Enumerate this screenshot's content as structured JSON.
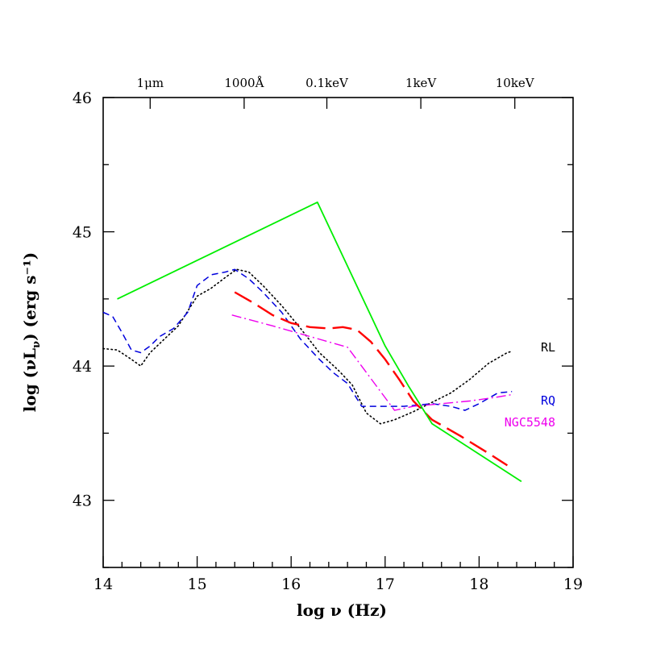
{
  "chart_data": {
    "type": "line",
    "xlabel": "log ν (Hz)",
    "ylabel": "log (νL",
    "ylabel_sub": "ν",
    "ylabel_tail": ") (erg s⁻¹)",
    "xlim": [
      14,
      19
    ],
    "ylim": [
      42.5,
      46
    ],
    "x_ticks": [
      14,
      15,
      16,
      17,
      18,
      19
    ],
    "x_tick_labels": [
      "14",
      "15",
      "16",
      "17",
      "18",
      "19"
    ],
    "y_ticks": [
      43,
      44,
      45,
      46
    ],
    "y_tick_labels": [
      "43",
      "44",
      "45",
      "46"
    ],
    "top_axis": [
      {
        "x": 14.5,
        "label": "1μm"
      },
      {
        "x": 15.5,
        "label": "1000Å"
      },
      {
        "x": 16.38,
        "label": "0.1keV"
      },
      {
        "x": 17.38,
        "label": "1keV"
      },
      {
        "x": 18.38,
        "label": "10keV"
      }
    ],
    "series": [
      {
        "name": "RL",
        "color": "#000000",
        "style": "dotted",
        "x": [
          14.0,
          14.15,
          14.3,
          14.4,
          14.5,
          14.65,
          14.8,
          15.0,
          15.15,
          15.3,
          15.42,
          15.55,
          15.7,
          15.9,
          16.1,
          16.3,
          16.5,
          16.65,
          16.8,
          16.95,
          17.1,
          17.3,
          17.5,
          17.7,
          17.9,
          18.1,
          18.3,
          18.35
        ],
        "y": [
          44.13,
          44.12,
          44.05,
          44.0,
          44.1,
          44.2,
          44.3,
          44.52,
          44.58,
          44.66,
          44.72,
          44.7,
          44.6,
          44.45,
          44.28,
          44.1,
          43.97,
          43.86,
          43.65,
          43.57,
          43.6,
          43.66,
          43.73,
          43.8,
          43.9,
          44.02,
          44.1,
          44.11
        ]
      },
      {
        "name": "RQ",
        "color": "#0000dd",
        "style": "dashed",
        "x": [
          14.0,
          14.1,
          14.2,
          14.3,
          14.4,
          14.5,
          14.6,
          14.75,
          14.9,
          15.0,
          15.15,
          15.3,
          15.4,
          15.55,
          15.7,
          15.9,
          16.1,
          16.3,
          16.45,
          16.6,
          16.75,
          16.95,
          17.2,
          17.5,
          17.7,
          17.85,
          18.0,
          18.2,
          18.35
        ],
        "y": [
          44.4,
          44.37,
          44.25,
          44.12,
          44.1,
          44.15,
          44.22,
          44.28,
          44.4,
          44.6,
          44.68,
          44.7,
          44.72,
          44.65,
          44.55,
          44.4,
          44.2,
          44.05,
          43.95,
          43.87,
          43.7,
          43.7,
          43.7,
          43.72,
          43.7,
          43.67,
          43.72,
          43.8,
          43.81
        ]
      },
      {
        "name": "NGC5548",
        "color": "#ee00ee",
        "style": "dash-dot",
        "x": [
          15.37,
          15.8,
          16.2,
          16.6,
          17.1,
          17.3,
          17.6,
          17.9,
          18.2,
          18.37
        ],
        "y": [
          44.38,
          44.3,
          44.22,
          44.14,
          43.67,
          43.7,
          43.72,
          43.74,
          43.77,
          43.79
        ]
      },
      {
        "name": "",
        "color": "#ff0000",
        "style": "long-dash",
        "x": [
          15.4,
          15.6,
          15.8,
          16.0,
          16.2,
          16.4,
          16.55,
          16.7,
          16.85,
          17.0,
          17.15,
          17.3,
          17.5,
          17.8,
          18.1,
          18.3
        ],
        "y": [
          44.55,
          44.47,
          44.38,
          44.32,
          44.29,
          44.28,
          44.29,
          44.27,
          44.18,
          44.05,
          43.9,
          43.74,
          43.6,
          43.48,
          43.35,
          43.26
        ]
      },
      {
        "name": "",
        "color": "#00ee00",
        "style": "solid",
        "x": [
          14.15,
          16.28,
          17.0,
          17.25,
          17.5,
          18.45
        ],
        "y": [
          44.5,
          45.22,
          44.15,
          43.85,
          43.57,
          43.14
        ]
      }
    ]
  }
}
